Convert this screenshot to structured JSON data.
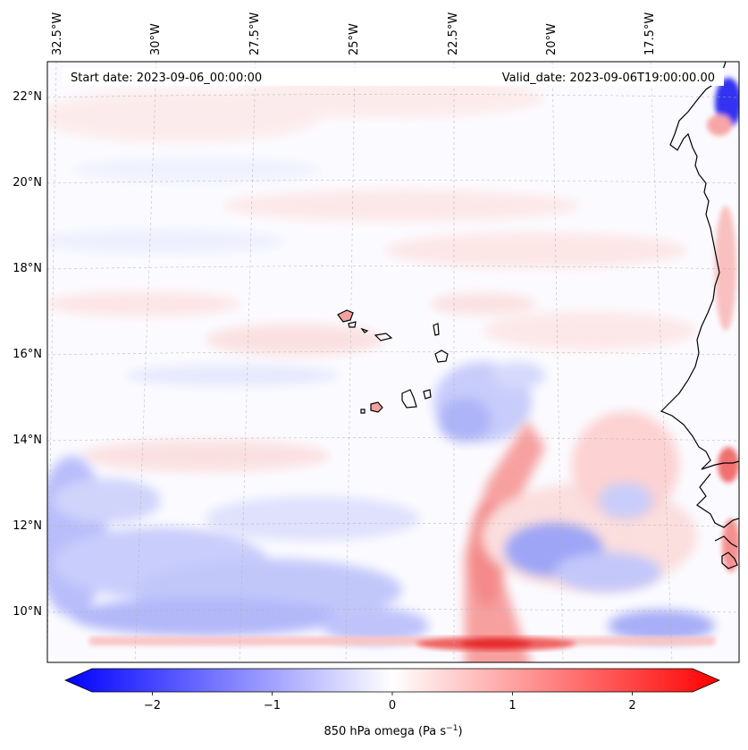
{
  "map": {
    "header": {
      "start_label": "Start date: 2023-09-06_00:00:00",
      "valid_label": "Valid_date: 2023-09-06T19:00:00.00"
    },
    "lon_ticks": [
      "32.5°W",
      "30°W",
      "27.5°W",
      "25°W",
      "22.5°W",
      "20°W",
      "17.5°W"
    ],
    "lat_ticks": [
      "22°N",
      "20°N",
      "18°N",
      "16°N",
      "14°N",
      "12°N",
      "10°N"
    ],
    "colors": {
      "negative": "#0000ff",
      "neutral": "#ffffff",
      "positive": "#ff0000",
      "coastline": "#000000",
      "gridline": "#b0b0b0"
    }
  },
  "colorbar": {
    "ticks": [
      "−2",
      "−1",
      "0",
      "1",
      "2"
    ],
    "label": "850 hPa omega (Pa s",
    "label_sup": "−1",
    "label_end": ")",
    "range": [
      -2.5,
      2.5
    ],
    "colormap": "bwr",
    "extend": "both"
  }
}
